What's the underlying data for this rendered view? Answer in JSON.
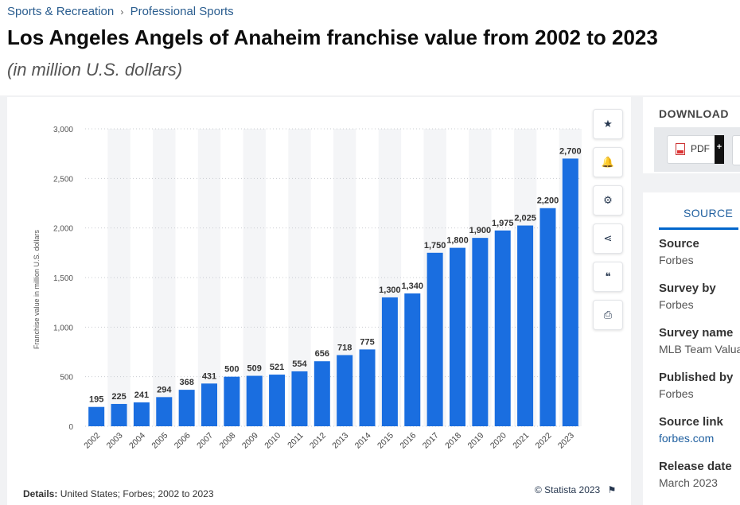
{
  "breadcrumb": {
    "parent": "Sports & Recreation",
    "separator": "›",
    "current": "Professional Sports"
  },
  "header": {
    "title": "Los Angeles Angels of Anaheim franchise value from 2002 to 2023",
    "subtitle": "(in million U.S. dollars)"
  },
  "tools": [
    {
      "icon": "star-icon",
      "glyph": "★"
    },
    {
      "icon": "bell-icon",
      "glyph": "🔔"
    },
    {
      "icon": "gear-icon",
      "glyph": "⚙"
    },
    {
      "icon": "share-icon",
      "glyph": "⋖"
    },
    {
      "icon": "quote-icon",
      "glyph": "❝"
    },
    {
      "icon": "print-icon",
      "glyph": "⎙"
    }
  ],
  "details": {
    "label": "Details:",
    "text": "United States; Forbes; 2002 to 2023"
  },
  "copyright": "© Statista 2023",
  "download": {
    "title": "DOWNLOAD",
    "pdf_label": "PDF",
    "plus": "+"
  },
  "source_panel": {
    "tab": "SOURCE",
    "items": [
      {
        "label": "Source",
        "value": "Forbes"
      },
      {
        "label": "Survey by",
        "value": "Forbes"
      },
      {
        "label": "Survey name",
        "value": "MLB Team Valua"
      },
      {
        "label": "Published by",
        "value": "Forbes"
      },
      {
        "label": "Source link",
        "value": "forbes.com"
      },
      {
        "label": "Release date",
        "value": "March 2023"
      }
    ]
  },
  "colors": {
    "bar": "#1a6ee0",
    "accent": "#0066cc",
    "link": "#1f5f9f"
  },
  "chart_data": {
    "type": "bar",
    "title": "Los Angeles Angels of Anaheim franchise value from 2002 to 2023",
    "ylabel": "Franchise value in million U.S. dollars",
    "xlabel": "",
    "ylim": [
      0,
      3000
    ],
    "yticks": [
      0,
      500,
      1000,
      1500,
      2000,
      2500,
      3000
    ],
    "ytick_labels": [
      "0",
      "500",
      "1,000",
      "1,500",
      "2,000",
      "2,500",
      "3,000"
    ],
    "categories": [
      "2002",
      "2003",
      "2004",
      "2005",
      "2006",
      "2007",
      "2008",
      "2009",
      "2010",
      "2011",
      "2012",
      "2013",
      "2014",
      "2015",
      "2016",
      "2017",
      "2018",
      "2019",
      "2020",
      "2021",
      "2022",
      "2023"
    ],
    "values": [
      195,
      225,
      241,
      294,
      368,
      431,
      500,
      509,
      521,
      554,
      656,
      718,
      775,
      1300,
      1340,
      1750,
      1800,
      1900,
      1975,
      2025,
      2200,
      2700
    ],
    "labels": [
      "195",
      "225",
      "241",
      "294",
      "368",
      "431",
      "500",
      "509",
      "521",
      "554",
      "656",
      "718",
      "775",
      "1,300",
      "1,340",
      "1,750",
      "1,800",
      "1,900",
      "1,975",
      "2,025",
      "2,200",
      "2,700"
    ],
    "grid": true
  }
}
